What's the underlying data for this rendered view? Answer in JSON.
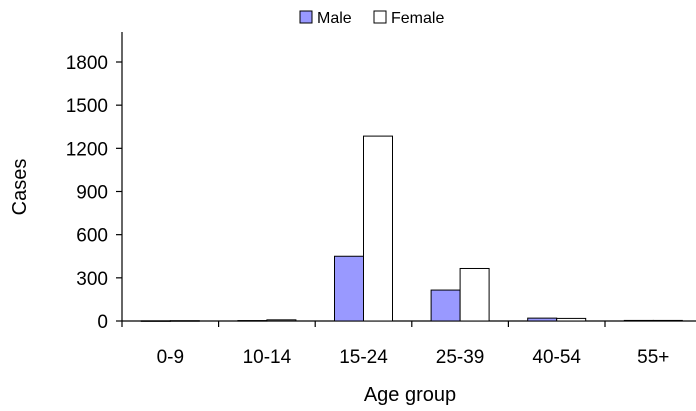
{
  "chart_data": {
    "type": "bar",
    "title": "",
    "xlabel": "Age group",
    "ylabel": "Cases",
    "ylim": [
      0,
      2000
    ],
    "yticks": [
      0,
      300,
      600,
      900,
      1200,
      1500,
      1800
    ],
    "ytick_labels": [
      "0",
      "300",
      "600",
      "900",
      "1200",
      "1500",
      "1800"
    ],
    "categories": [
      "0-9",
      "10-14",
      "15-24",
      "25-39",
      "40-54",
      "55+"
    ],
    "series": [
      {
        "name": "Male",
        "values": [
          1,
          3,
          450,
          215,
          20,
          4
        ],
        "color": "#9999ff"
      },
      {
        "name": "Female",
        "values": [
          2,
          8,
          1285,
          365,
          18,
          4
        ],
        "color": "#ffffff"
      }
    ],
    "legend_position": "top-center",
    "grid": false
  }
}
